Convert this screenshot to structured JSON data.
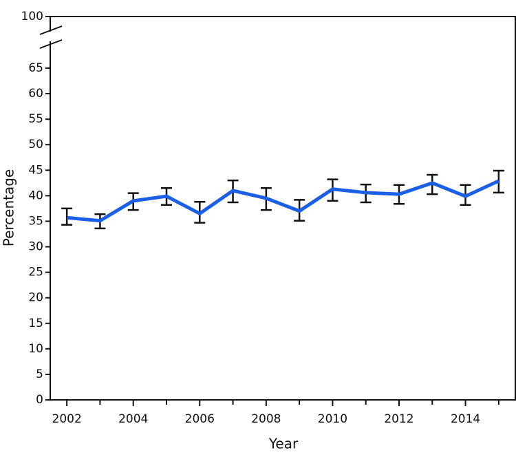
{
  "chart_data": {
    "type": "line",
    "x_label": "Year",
    "y_label": "Percentage",
    "x": [
      2002,
      2003,
      2004,
      2005,
      2006,
      2007,
      2008,
      2009,
      2010,
      2011,
      2012,
      2013,
      2014,
      2015
    ],
    "series": [
      {
        "color": "#1a5fe6",
        "values": [
          35.7,
          35.1,
          39.0,
          39.9,
          36.5,
          41.0,
          39.5,
          37.0,
          41.3,
          40.6,
          40.3,
          42.5,
          39.9,
          42.9
        ],
        "lower": [
          34.3,
          33.6,
          37.2,
          38.2,
          34.7,
          38.7,
          37.2,
          35.1,
          39.0,
          38.7,
          38.4,
          40.3,
          38.2,
          40.6
        ],
        "upper": [
          37.5,
          36.4,
          40.5,
          41.5,
          38.8,
          43.0,
          41.5,
          39.2,
          43.2,
          42.2,
          42.1,
          44.1,
          42.1,
          44.9
        ]
      }
    ],
    "xlim": [
      2001.5,
      2015.5
    ],
    "xticks": [
      2002,
      2004,
      2006,
      2008,
      2010,
      2012,
      2014
    ],
    "xminorticks": [
      2003,
      2005,
      2007,
      2009,
      2011,
      2013,
      2015
    ],
    "ylim": [
      0,
      100
    ],
    "yticks": [
      0,
      5,
      10,
      15,
      20,
      25,
      30,
      35,
      40,
      45,
      50,
      55,
      60,
      65,
      100
    ],
    "axis_break": [
      65,
      100
    ]
  }
}
